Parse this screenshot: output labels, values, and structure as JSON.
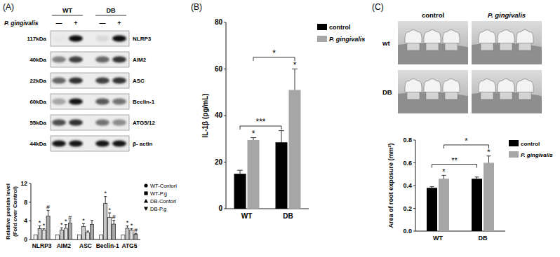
{
  "panels": [
    "(A)",
    "(B)",
    "(C)"
  ],
  "blot": {
    "groups": [
      "WT",
      "DB"
    ],
    "treatment_label": "P. gingivalis",
    "treatment": [
      "—",
      "+",
      "—",
      "+"
    ],
    "rows": [
      {
        "size": "117kDa",
        "protein": "NLRP3",
        "intensity": [
          0.1,
          0.95,
          0.15,
          0.95
        ]
      },
      {
        "size": "40kDa",
        "protein": "AIM2",
        "intensity": [
          0.5,
          0.75,
          0.6,
          0.8
        ]
      },
      {
        "size": "22kDa",
        "protein": "ASC",
        "intensity": [
          0.6,
          0.8,
          0.75,
          0.8
        ]
      },
      {
        "size": "60kDa",
        "protein": "Beclin-1",
        "intensity": [
          0.35,
          0.9,
          0.65,
          0.55
        ]
      },
      {
        "size": "55kDa",
        "protein": "ATG5/12",
        "intensity": [
          0.7,
          0.8,
          0.55,
          0.45
        ]
      },
      {
        "size": "44kDa",
        "protein": "β- actin",
        "intensity": [
          0.9,
          0.9,
          0.9,
          0.9
        ]
      }
    ]
  },
  "photos": {
    "columns": [
      "control",
      "P. gingivalis"
    ],
    "rows": [
      "wt",
      "DB"
    ]
  },
  "chart_data": [
    {
      "type": "bar",
      "y_label": [
        "Relative protein level",
        "(Fold over Control)"
      ],
      "categories": [
        "NLRP3",
        "AIM2",
        "ASC",
        "Beclin-1",
        "ATG5"
      ],
      "ylim": [
        0,
        12
      ],
      "yticks": [
        0,
        4,
        8,
        12
      ],
      "legend": "right",
      "series": [
        {
          "name": "WT-Contorl",
          "color": "#f2f2f2",
          "marker": "circle",
          "values": [
            1,
            1,
            1,
            1,
            1
          ]
        },
        {
          "name": "WT-P.g",
          "color": "#c8c8c8",
          "marker": "square",
          "values": [
            2.3,
            2.0,
            2.8,
            7.7,
            2.4
          ],
          "errors": [
            0.6,
            0.5,
            0.6,
            1.5,
            0.5
          ],
          "annotations": [
            "*",
            "*",
            "*",
            "*",
            "*"
          ]
        },
        {
          "name": "DB-Contorl",
          "color": "#dedede",
          "marker": "triangle",
          "values": [
            2.0,
            2.4,
            1.5,
            4.7,
            2.0
          ],
          "errors": [
            0.3,
            0.8,
            0.3,
            1.0,
            0.3
          ],
          "annotations": [
            "*",
            "*",
            null,
            "*",
            "*"
          ]
        },
        {
          "name": "DB-P.g",
          "color": "#a8a8a8",
          "marker": "triangle-down",
          "values": [
            5.0,
            3.5,
            3.2,
            3.3,
            1.1
          ],
          "errors": [
            1.2,
            0.5,
            0.9,
            0.8,
            0.2
          ],
          "annotations": [
            "#",
            "#",
            null,
            "#",
            "#"
          ]
        }
      ]
    },
    {
      "type": "bar",
      "y_label": "IL-1β (pg/mL)",
      "categories": [
        "WT",
        "DB"
      ],
      "ylim": [
        0,
        80
      ],
      "yticks": [
        0,
        20,
        40,
        60,
        80
      ],
      "legend": "top-right",
      "series": [
        {
          "name": "control",
          "color": "#000000",
          "values": [
            15,
            28.5
          ],
          "errors": [
            1.5,
            5
          ]
        },
        {
          "name": "P. gingivalis",
          "color": "#a6a6a6",
          "values": [
            29.5,
            51
          ],
          "errors": [
            1,
            9
          ],
          "annotations": [
            "*",
            "*"
          ]
        }
      ],
      "comparisons": [
        {
          "series": "control",
          "label": "***"
        },
        {
          "series": "P. gingivalis",
          "label": "*"
        }
      ]
    },
    {
      "type": "bar",
      "y_label": "Area of root exposure (mm²)",
      "categories": [
        "WT",
        "DB"
      ],
      "ylim": [
        0,
        0.8
      ],
      "yticks": [
        {
          "value": 0,
          "label": "0.0"
        },
        0.2,
        0.4,
        0.6,
        0.8
      ],
      "legend": "top-right",
      "series": [
        {
          "name": "control",
          "color": "#000000",
          "values": [
            0.38,
            0.46
          ],
          "errors": [
            0.01,
            0.015
          ]
        },
        {
          "name": "P. gingivalis",
          "color": "#a6a6a6",
          "values": [
            0.46,
            0.6
          ],
          "errors": [
            0.03,
            0.06
          ],
          "annotations": [
            "*",
            "*"
          ]
        }
      ],
      "comparisons": [
        {
          "series": "control",
          "label": "**"
        },
        {
          "series": "P. gingivalis",
          "label": "*"
        }
      ]
    }
  ]
}
